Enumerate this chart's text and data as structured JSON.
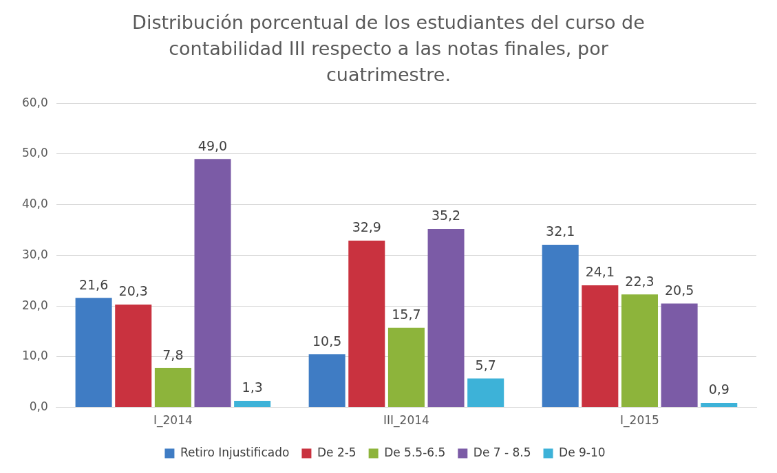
{
  "chart_data": {
    "type": "bar",
    "title": "Distribución porcentual de los estudiantes del curso de contabilidad III respecto a las notas finales, por cuatrimestre.",
    "categories": [
      "I_2014",
      "III_2014",
      "I_2015"
    ],
    "series": [
      {
        "name": "Retiro Injustificado",
        "color": "#3f7cc4",
        "values": [
          21.6,
          10.5,
          32.1
        ],
        "value_labels": [
          "21,6",
          "10,5",
          "32,1"
        ]
      },
      {
        "name": "De 2-5",
        "color": "#c9323f",
        "values": [
          20.3,
          32.9,
          24.1
        ],
        "value_labels": [
          "20,3",
          "32,9",
          "24,1"
        ]
      },
      {
        "name": "De 5.5-6.5",
        "color": "#8db43b",
        "values": [
          7.8,
          15.7,
          22.3
        ],
        "value_labels": [
          "7,8",
          "15,7",
          "22,3"
        ]
      },
      {
        "name": "De 7 - 8.5",
        "color": "#7b5ba6",
        "values": [
          49.0,
          35.2,
          20.5
        ],
        "value_labels": [
          "49,0",
          "35,2",
          "20,5"
        ]
      },
      {
        "name": "De 9-10",
        "color": "#3db2d8",
        "values": [
          1.3,
          5.7,
          0.9
        ],
        "value_labels": [
          "1,3",
          "5,7",
          "0,9"
        ]
      }
    ],
    "ylim": [
      0,
      60
    ],
    "yticks": [
      {
        "value": 0,
        "label": "0,0"
      },
      {
        "value": 10,
        "label": "10,0"
      },
      {
        "value": 20,
        "label": "20,0"
      },
      {
        "value": 30,
        "label": "30,0"
      },
      {
        "value": 40,
        "label": "40,0"
      },
      {
        "value": 50,
        "label": "50,0"
      },
      {
        "value": 60,
        "label": "60,0"
      }
    ],
    "grid": "y",
    "legend": "bottom"
  }
}
